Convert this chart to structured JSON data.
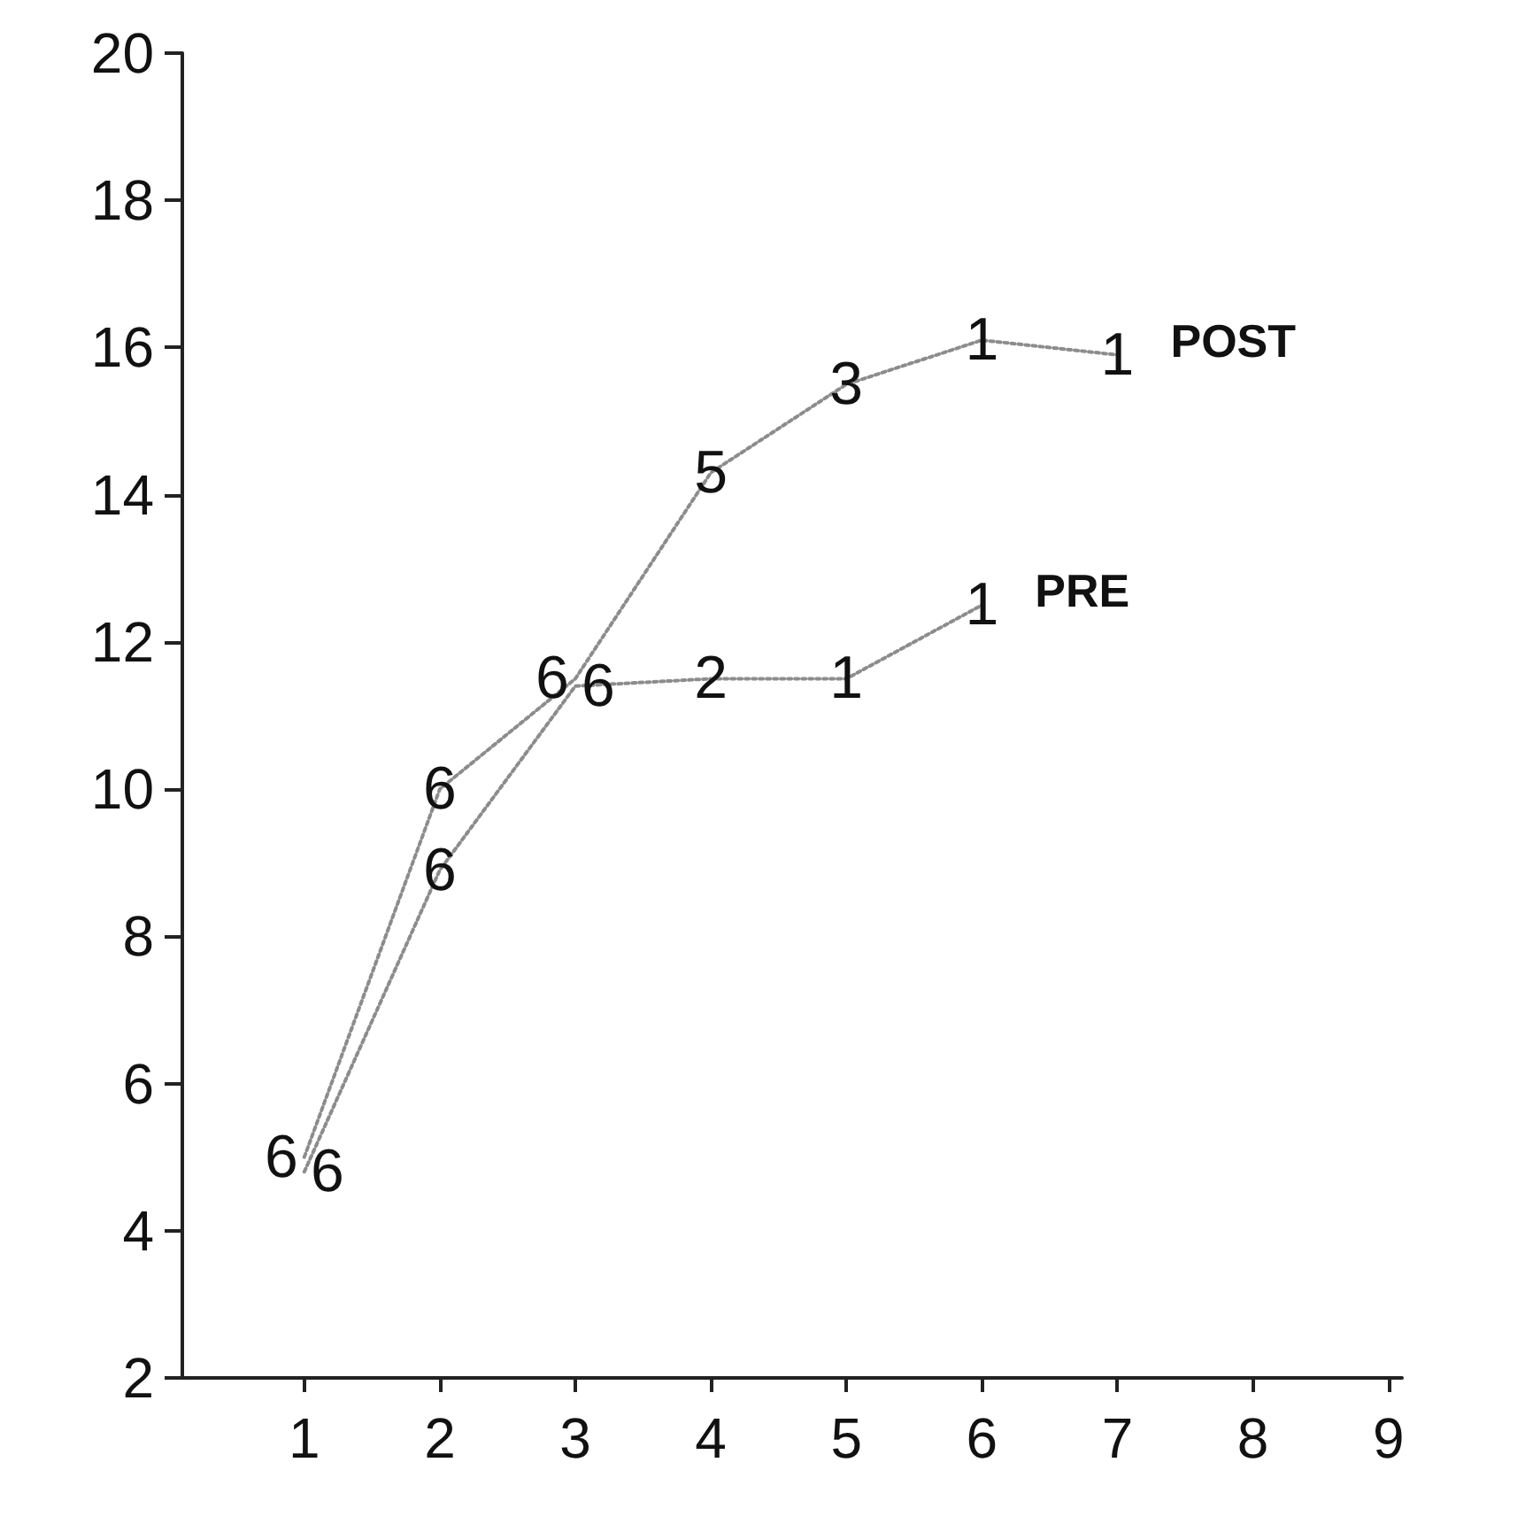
{
  "chart_data": {
    "type": "line",
    "x": [
      1,
      2,
      3,
      4,
      5,
      6,
      7
    ],
    "xlim": [
      0.1,
      9.1
    ],
    "xticks": [
      1,
      2,
      3,
      4,
      5,
      6,
      7,
      8,
      9
    ],
    "ylim": [
      2,
      20
    ],
    "yticks": [
      2,
      4,
      6,
      8,
      10,
      12,
      14,
      16,
      18,
      20
    ],
    "grid": false,
    "legend": false,
    "marker": "none",
    "line_style": "dotted",
    "series": [
      {
        "name": "POST",
        "color": "#8c8c8c",
        "values": [
          5.0,
          10.0,
          11.5,
          14.3,
          15.5,
          16.1,
          15.9
        ]
      },
      {
        "name": "PRE",
        "color": "#8c8c8c",
        "values": [
          4.8,
          8.9,
          11.4,
          11.5,
          11.5,
          12.5,
          null
        ]
      }
    ],
    "annotations": [
      {
        "text": "6",
        "x": 1,
        "y": 5.0
      },
      {
        "text": "6",
        "x": 2,
        "y": 10.0
      },
      {
        "text": "6",
        "x": 3,
        "y": 11.5
      },
      {
        "text": "5",
        "x": 4,
        "y": 14.3
      },
      {
        "text": "3",
        "x": 5,
        "y": 15.5
      },
      {
        "text": "1",
        "x": 6,
        "y": 16.1
      },
      {
        "text": "1",
        "x": 7,
        "y": 15.9
      },
      {
        "text": "6",
        "x": 1,
        "y": 4.8
      },
      {
        "text": "6",
        "x": 2,
        "y": 8.9
      },
      {
        "text": "6",
        "x": 3,
        "y": 11.4
      },
      {
        "text": "2",
        "x": 4,
        "y": 11.5
      },
      {
        "text": "1",
        "x": 5,
        "y": 11.5
      },
      {
        "text": "1",
        "x": 6,
        "y": 12.5
      }
    ]
  }
}
